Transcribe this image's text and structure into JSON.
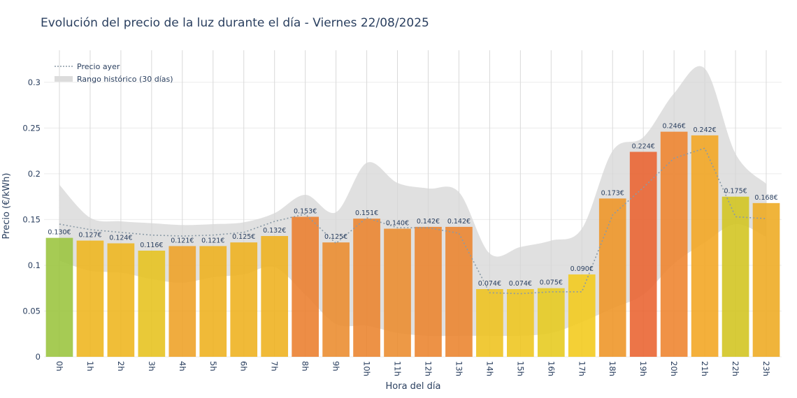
{
  "chart_data": {
    "type": "bar",
    "title": "Evolución del precio de la luz durante el día - Viernes 22/08/2025",
    "xlabel": "Hora del día",
    "ylabel": "Precio (€/kWh)",
    "ylim": [
      0,
      0.335
    ],
    "yticks": [
      0,
      0.05,
      0.1,
      0.15,
      0.2,
      0.25,
      0.3
    ],
    "ytick_labels": [
      "0",
      "0.05",
      "0.1",
      "0.15",
      "0.2",
      "0.25",
      "0.3"
    ],
    "grid": true,
    "legend_position": "top-left",
    "categories": [
      "0h",
      "1h",
      "2h",
      "3h",
      "4h",
      "5h",
      "6h",
      "7h",
      "8h",
      "9h",
      "10h",
      "11h",
      "12h",
      "13h",
      "14h",
      "15h",
      "16h",
      "17h",
      "18h",
      "19h",
      "20h",
      "21h",
      "22h",
      "23h"
    ],
    "series": [
      {
        "type": "bar",
        "values": [
          0.13,
          0.127,
          0.124,
          0.116,
          0.121,
          0.121,
          0.125,
          0.132,
          0.153,
          0.125,
          0.151,
          0.14,
          0.142,
          0.142,
          0.074,
          0.074,
          0.075,
          0.09,
          0.173,
          0.224,
          0.246,
          0.242,
          0.175,
          0.168
        ],
        "labels": [
          "0.130€",
          "0.127€",
          "0.124€",
          "0.116€",
          "0.121€",
          "0.121€",
          "0.125€",
          "0.132€",
          "0.153€",
          "0.125€",
          "0.151€",
          "0.140€",
          "0.142€",
          "0.142€",
          "0.074€",
          "0.074€",
          "0.075€",
          "0.090€",
          "0.173€",
          "0.224€",
          "0.246€",
          "0.242€",
          "0.175€",
          "0.168€"
        ],
        "colors": [
          "#9ac43c",
          "#eeb51c",
          "#eeb51c",
          "#e6c21c",
          "#eea124",
          "#eeb11c",
          "#eeb11c",
          "#eeb11c",
          "#ea7d2c",
          "#ea8b2c",
          "#ea832c",
          "#ea8b2c",
          "#ea832c",
          "#ea832c",
          "#eec21c",
          "#eec51c",
          "#e6c91c",
          "#f2c91a",
          "#ee9424",
          "#e9622f",
          "#ee832c",
          "#f2a520",
          "#d2c41e",
          "#eeaa20"
        ]
      },
      {
        "name": "Precio ayer",
        "type": "line",
        "style": "dotted",
        "color": "#8a9aa6",
        "values": [
          0.145,
          0.139,
          0.136,
          0.133,
          0.132,
          0.133,
          0.136,
          0.148,
          0.156,
          0.124,
          0.152,
          0.141,
          0.141,
          0.135,
          0.07,
          0.069,
          0.071,
          0.071,
          0.155,
          0.185,
          0.217,
          0.228,
          0.153,
          0.151
        ]
      },
      {
        "name": "Rango histórico (30 días)",
        "type": "band",
        "color": "#d6d6d6",
        "upper": [
          0.188,
          0.152,
          0.148,
          0.146,
          0.144,
          0.145,
          0.147,
          0.157,
          0.177,
          0.158,
          0.212,
          0.19,
          0.184,
          0.18,
          0.113,
          0.12,
          0.127,
          0.14,
          0.225,
          0.24,
          0.288,
          0.315,
          0.222,
          0.189
        ],
        "lower": [
          0.105,
          0.094,
          0.092,
          0.085,
          0.081,
          0.087,
          0.09,
          0.098,
          0.068,
          0.036,
          0.034,
          0.026,
          0.023,
          0.023,
          0.023,
          0.023,
          0.026,
          0.038,
          0.053,
          0.068,
          0.102,
          0.125,
          0.145,
          0.131
        ]
      }
    ]
  }
}
